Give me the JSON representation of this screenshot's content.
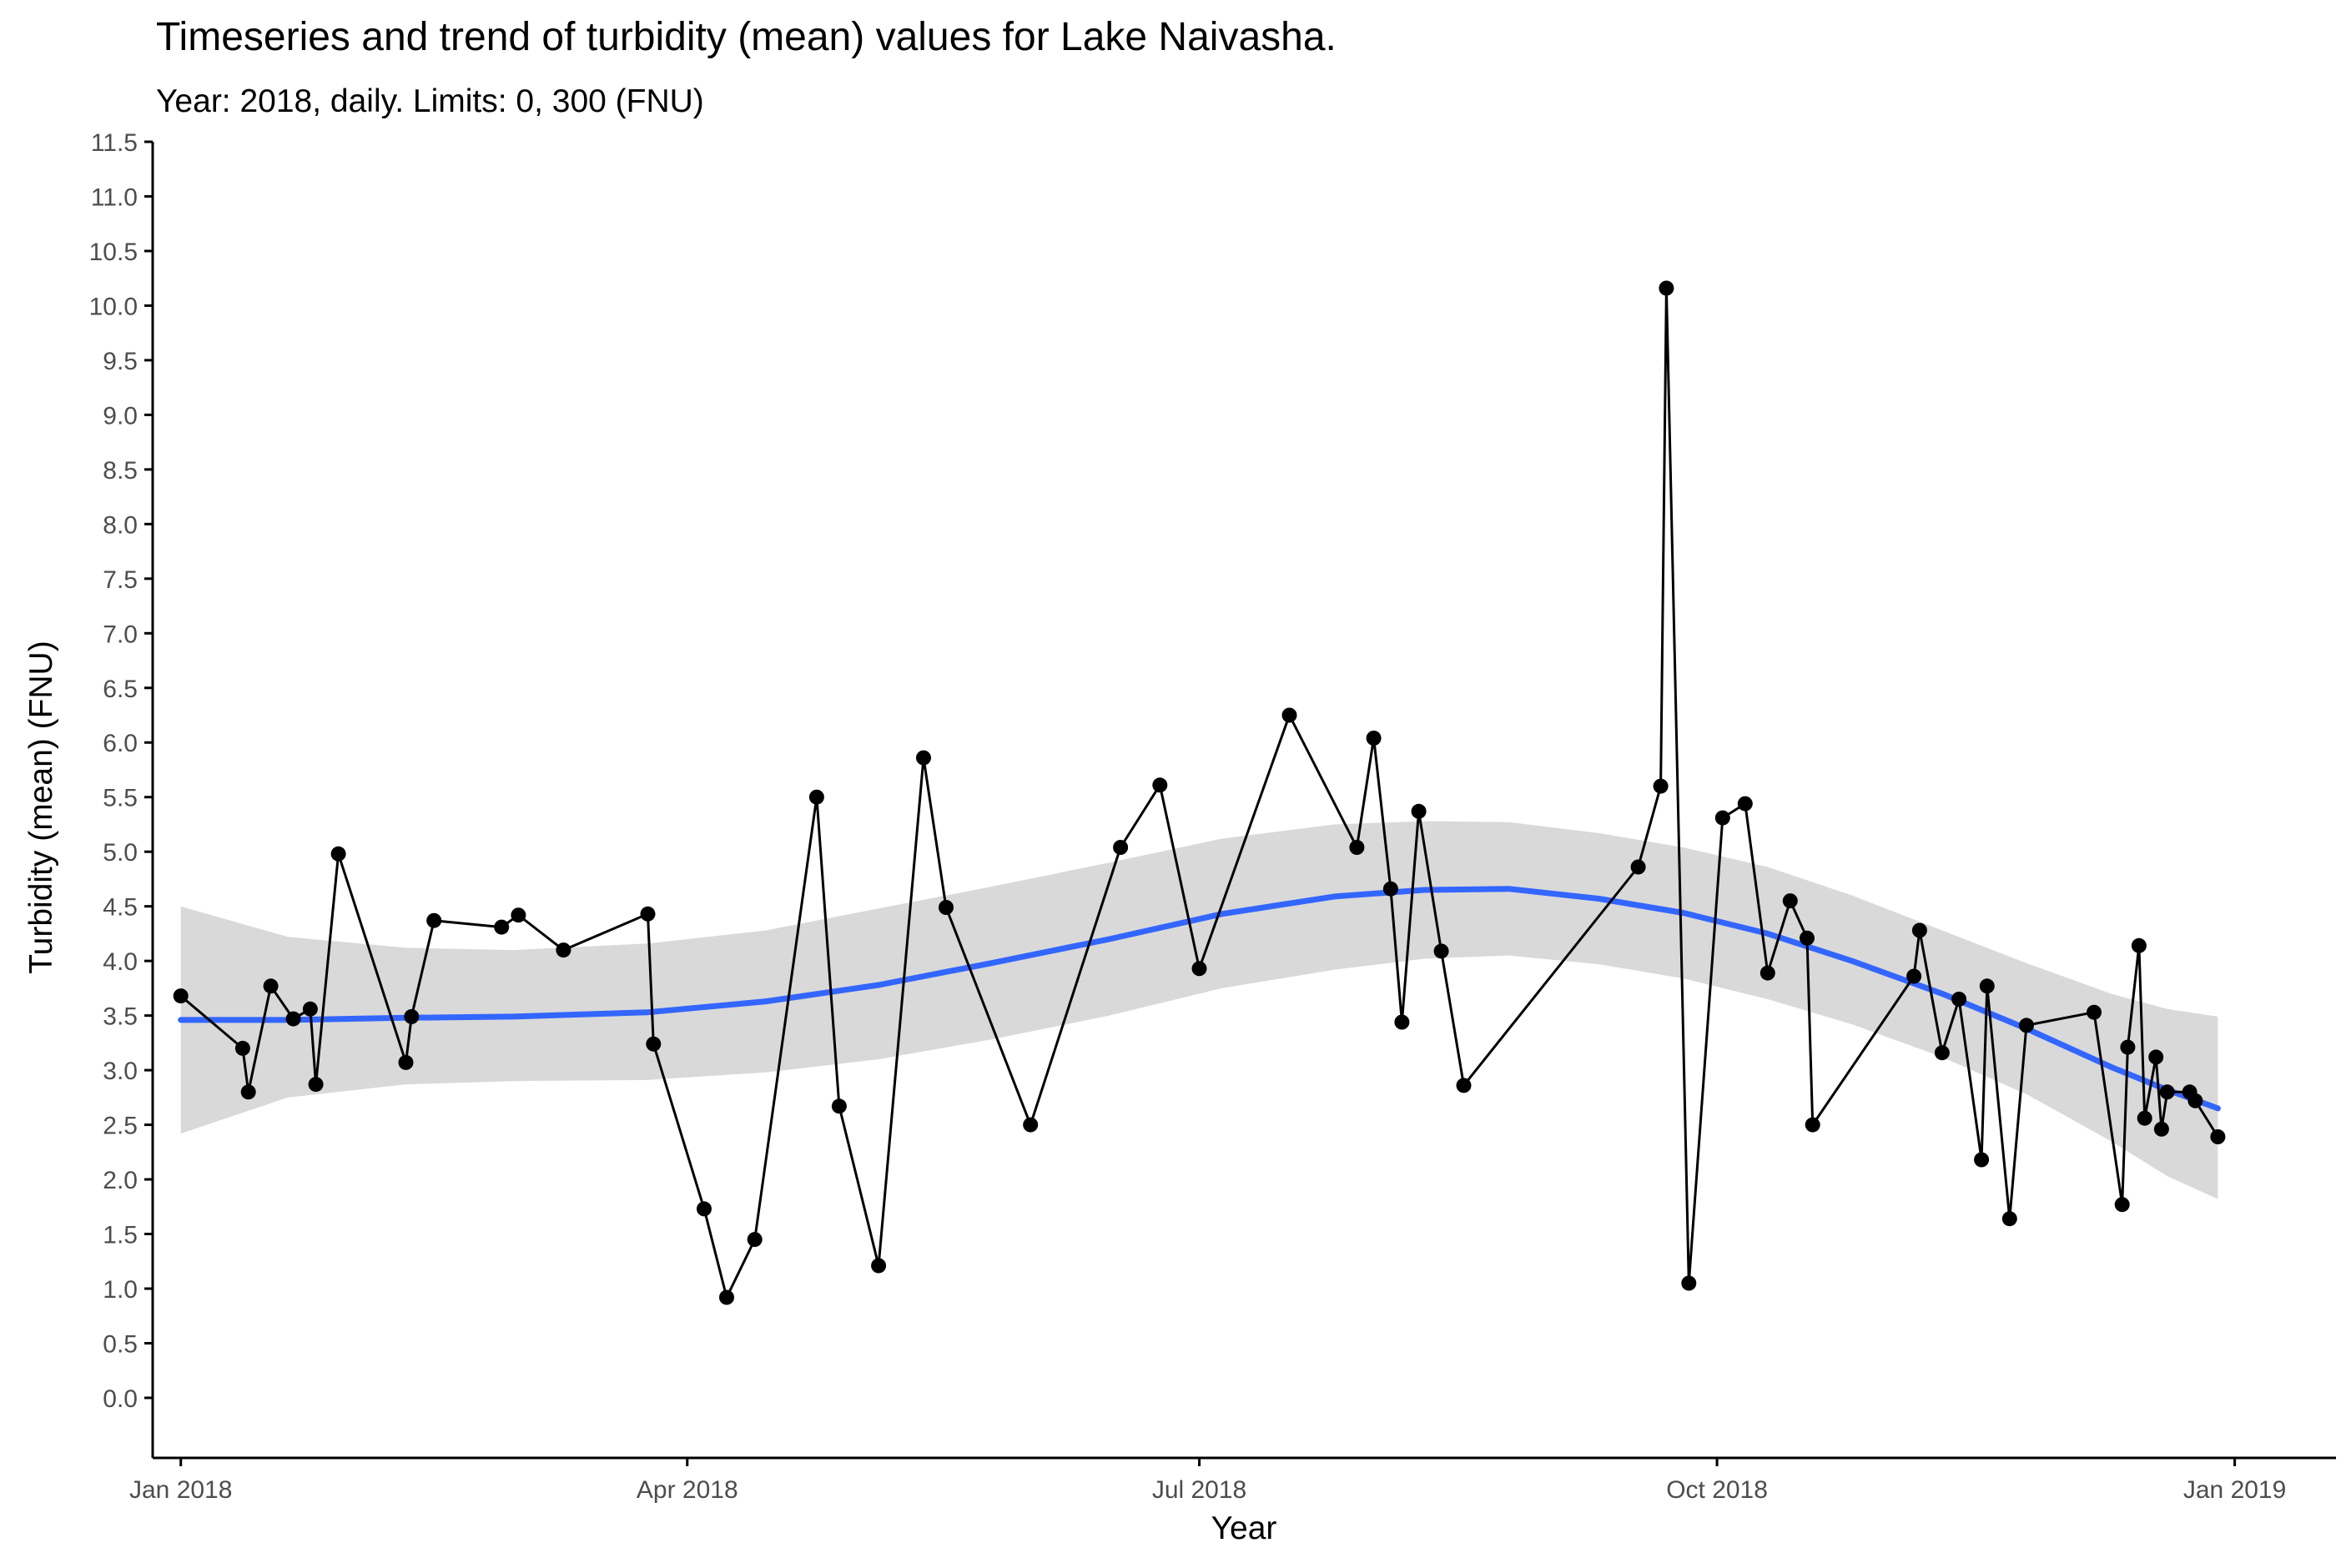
{
  "chart_data": {
    "type": "line",
    "title": "Timeseries and trend of turbidity (mean) values for Lake Naivasha.",
    "subtitle": "Year: 2018, daily. Limits: 0, 300 (FNU)",
    "xlabel": "Year",
    "ylabel": "Turbidity (mean) (FNU)",
    "xlim": [
      "2017-12-27",
      "2019-01-19"
    ],
    "ylim": [
      -0.55,
      11.5
    ],
    "x_ticks": [
      {
        "date": "2018-01-01",
        "label": "Jan 2018"
      },
      {
        "date": "2018-04-01",
        "label": "Apr 2018"
      },
      {
        "date": "2018-07-01",
        "label": "Jul 2018"
      },
      {
        "date": "2018-10-01",
        "label": "Oct 2018"
      },
      {
        "date": "2019-01-01",
        "label": "Jan 2019"
      }
    ],
    "y_ticks": [
      "0.0",
      "0.5",
      "1.0",
      "1.5",
      "2.0",
      "2.5",
      "3.0",
      "3.5",
      "4.0",
      "4.5",
      "5.0",
      "5.5",
      "6.0",
      "6.5",
      "7.0",
      "7.5",
      "8.0",
      "8.5",
      "9.0",
      "9.5",
      "10.0",
      "10.5",
      "11.0",
      "11.5"
    ],
    "grid": false,
    "legend": "none",
    "colors": {
      "observations": "#000000",
      "trend": "#3366ff",
      "confidence_band": "#d9d9d9"
    },
    "series": [
      {
        "values": [
          {
            "x": "2018-01-01",
            "y": 3.68
          },
          {
            "x": "2018-01-12",
            "y": 3.2
          },
          {
            "x": "2018-01-13",
            "y": 2.8
          },
          {
            "x": "2018-01-17",
            "y": 3.77
          },
          {
            "x": "2018-01-21",
            "y": 3.47
          },
          {
            "x": "2018-01-24",
            "y": 3.56
          },
          {
            "x": "2018-01-25",
            "y": 2.87
          },
          {
            "x": "2018-01-29",
            "y": 4.98
          },
          {
            "x": "2018-02-10",
            "y": 3.07
          },
          {
            "x": "2018-02-11",
            "y": 3.49
          },
          {
            "x": "2018-02-15",
            "y": 4.37
          },
          {
            "x": "2018-02-27",
            "y": 4.31
          },
          {
            "x": "2018-03-02",
            "y": 4.42
          },
          {
            "x": "2018-03-10",
            "y": 4.1
          },
          {
            "x": "2018-03-25",
            "y": 4.43
          },
          {
            "x": "2018-03-26",
            "y": 3.24
          },
          {
            "x": "2018-04-04",
            "y": 1.73
          },
          {
            "x": "2018-04-08",
            "y": 0.92
          },
          {
            "x": "2018-04-13",
            "y": 1.45
          },
          {
            "x": "2018-04-24",
            "y": 5.5
          },
          {
            "x": "2018-04-28",
            "y": 2.67
          },
          {
            "x": "2018-05-05",
            "y": 1.21
          },
          {
            "x": "2018-05-13",
            "y": 5.86
          },
          {
            "x": "2018-05-17",
            "y": 4.49
          },
          {
            "x": "2018-06-01",
            "y": 2.5
          },
          {
            "x": "2018-06-17",
            "y": 5.04
          },
          {
            "x": "2018-06-24",
            "y": 5.61
          },
          {
            "x": "2018-07-01",
            "y": 3.93
          },
          {
            "x": "2018-07-17",
            "y": 6.25
          },
          {
            "x": "2018-07-29",
            "y": 5.04
          },
          {
            "x": "2018-08-01",
            "y": 6.04
          },
          {
            "x": "2018-08-04",
            "y": 4.66
          },
          {
            "x": "2018-08-06",
            "y": 3.44
          },
          {
            "x": "2018-08-09",
            "y": 5.37
          },
          {
            "x": "2018-08-13",
            "y": 4.09
          },
          {
            "x": "2018-08-17",
            "y": 2.86
          },
          {
            "x": "2018-09-17",
            "y": 4.86
          },
          {
            "x": "2018-09-21",
            "y": 5.6
          },
          {
            "x": "2018-09-22",
            "y": 10.16
          },
          {
            "x": "2018-09-26",
            "y": 1.05
          },
          {
            "x": "2018-10-02",
            "y": 5.31
          },
          {
            "x": "2018-10-06",
            "y": 5.44
          },
          {
            "x": "2018-10-10",
            "y": 3.89
          },
          {
            "x": "2018-10-14",
            "y": 4.55
          },
          {
            "x": "2018-10-17",
            "y": 4.21
          },
          {
            "x": "2018-10-18",
            "y": 2.5
          },
          {
            "x": "2018-11-05",
            "y": 3.86
          },
          {
            "x": "2018-11-06",
            "y": 4.28
          },
          {
            "x": "2018-11-10",
            "y": 3.16
          },
          {
            "x": "2018-11-13",
            "y": 3.65
          },
          {
            "x": "2018-11-17",
            "y": 2.18
          },
          {
            "x": "2018-11-18",
            "y": 3.77
          },
          {
            "x": "2018-11-22",
            "y": 1.64
          },
          {
            "x": "2018-11-25",
            "y": 3.41
          },
          {
            "x": "2018-12-07",
            "y": 3.53
          },
          {
            "x": "2018-12-12",
            "y": 1.77
          },
          {
            "x": "2018-12-13",
            "y": 3.21
          },
          {
            "x": "2018-12-15",
            "y": 4.14
          },
          {
            "x": "2018-12-16",
            "y": 2.56
          },
          {
            "x": "2018-12-18",
            "y": 3.12
          },
          {
            "x": "2018-12-19",
            "y": 2.46
          },
          {
            "x": "2018-12-20",
            "y": 2.8
          },
          {
            "x": "2018-12-24",
            "y": 2.8
          },
          {
            "x": "2018-12-25",
            "y": 2.72
          },
          {
            "x": "2018-12-29",
            "y": 2.39
          }
        ]
      }
    ],
    "trend": {
      "type": "loess",
      "points": [
        {
          "x": "2018-01-01",
          "y": 3.46,
          "lo": 2.42,
          "hi": 4.5
        },
        {
          "x": "2018-01-20",
          "y": 3.46,
          "lo": 2.75,
          "hi": 4.22
        },
        {
          "x": "2018-02-10",
          "y": 3.48,
          "lo": 2.87,
          "hi": 4.12
        },
        {
          "x": "2018-03-01",
          "y": 3.49,
          "lo": 2.9,
          "hi": 4.1
        },
        {
          "x": "2018-03-25",
          "y": 3.53,
          "lo": 2.91,
          "hi": 4.16
        },
        {
          "x": "2018-04-15",
          "y": 3.63,
          "lo": 2.98,
          "hi": 4.28
        },
        {
          "x": "2018-05-05",
          "y": 3.78,
          "lo": 3.1,
          "hi": 4.48
        },
        {
          "x": "2018-05-25",
          "y": 3.98,
          "lo": 3.28,
          "hi": 4.68
        },
        {
          "x": "2018-06-15",
          "y": 4.2,
          "lo": 3.5,
          "hi": 4.9
        },
        {
          "x": "2018-07-05",
          "y": 4.43,
          "lo": 3.75,
          "hi": 5.12
        },
        {
          "x": "2018-07-25",
          "y": 4.59,
          "lo": 3.92,
          "hi": 5.25
        },
        {
          "x": "2018-08-10",
          "y": 4.65,
          "lo": 4.02,
          "hi": 5.28
        },
        {
          "x": "2018-08-25",
          "y": 4.66,
          "lo": 4.05,
          "hi": 5.27
        },
        {
          "x": "2018-09-10",
          "y": 4.57,
          "lo": 3.97,
          "hi": 5.17
        },
        {
          "x": "2018-09-25",
          "y": 4.44,
          "lo": 3.84,
          "hi": 5.04
        },
        {
          "x": "2018-10-10",
          "y": 4.25,
          "lo": 3.65,
          "hi": 4.86
        },
        {
          "x": "2018-10-25",
          "y": 4.0,
          "lo": 3.42,
          "hi": 4.6
        },
        {
          "x": "2018-11-10",
          "y": 3.7,
          "lo": 3.12,
          "hi": 4.28
        },
        {
          "x": "2018-11-25",
          "y": 3.38,
          "lo": 2.78,
          "hi": 3.98
        },
        {
          "x": "2018-12-10",
          "y": 3.03,
          "lo": 2.35,
          "hi": 3.7
        },
        {
          "x": "2018-12-20",
          "y": 2.82,
          "lo": 2.03,
          "hi": 3.56
        },
        {
          "x": "2018-12-29",
          "y": 2.65,
          "lo": 1.82,
          "hi": 3.49
        }
      ]
    }
  }
}
